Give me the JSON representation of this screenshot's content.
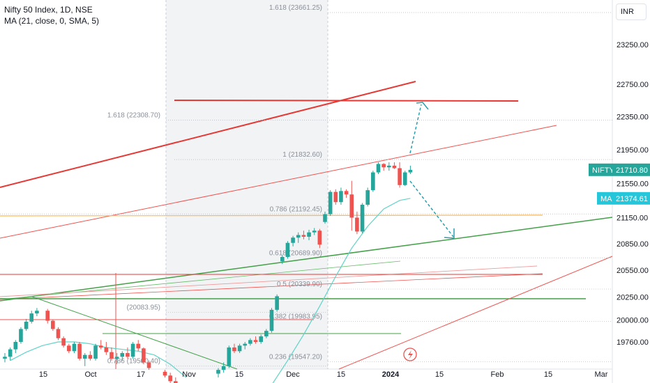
{
  "header": {
    "symbol_line": "Nifty 50 Index, 1D, NSE",
    "indicator_line": "MA (21, close, 0, SMA, 5)"
  },
  "currency": "INR",
  "colors": {
    "up": "#26a69a",
    "down": "#ef5350",
    "ma": "#5fd3c8",
    "price_badge": "#26a69a",
    "ma_badge": "#26c6da",
    "fib_line": "#b2b5be",
    "orange_line": "#ffb74d",
    "arrow": "#2a9fae"
  },
  "price_badge": {
    "symbol": "NIFTY",
    "value": "21710.80"
  },
  "ma_badge": {
    "symbol": "MA",
    "value": "21374.61"
  },
  "chart_data": {
    "type": "candlestick",
    "y_axis": {
      "ticks": [
        "23250.00",
        "22750.00",
        "22350.00",
        "21950.00",
        "21550.00",
        "21150.00",
        "20850.00",
        "20550.00",
        "20250.00",
        "20000.00",
        "19760.00"
      ],
      "tick_values": [
        23250,
        22750,
        22350,
        21950,
        21550,
        21150,
        20850,
        20550,
        20250,
        20000,
        19760
      ],
      "log_scale": true
    },
    "x_axis": {
      "ticks": [
        "15",
        "Oct",
        "17",
        "Nov",
        "15",
        "Dec",
        "15",
        "2024",
        "15",
        "Feb",
        "15",
        "Mar"
      ],
      "bold": [
        "2024"
      ]
    },
    "fib_levels": [
      {
        "label": "1.618 (23661.25)",
        "value": 23661.25
      },
      {
        "label": "1.618 (22308.70)",
        "value": 22308.7
      },
      {
        "label": "1 (21832.60)",
        "value": 21832.6
      },
      {
        "label": "0.786 (21192.45)",
        "value": 21192.45
      },
      {
        "label": "0.618 (20689.90)",
        "value": 20689.9
      },
      {
        "label": "0.5 (20339.90)",
        "value": 20339.9
      },
      {
        "label": "0.382 (19983.95)",
        "value": 19983.95
      },
      {
        "label": "0.236 (19547.20)",
        "value": 19547.2
      },
      {
        "label": "0.786 (19500.40)",
        "value": 19500.4
      },
      {
        "label": "(20083.95)",
        "value": 20083.95
      }
    ],
    "candles": [
      {
        "d": 0,
        "o": 19580,
        "h": 19640,
        "l": 19540,
        "c": 19600
      },
      {
        "d": 1,
        "o": 19600,
        "h": 19700,
        "l": 19560,
        "c": 19680
      },
      {
        "d": 2,
        "o": 19680,
        "h": 19780,
        "l": 19640,
        "c": 19760
      },
      {
        "d": 3,
        "o": 19760,
        "h": 19920,
        "l": 19740,
        "c": 19900
      },
      {
        "d": 4,
        "o": 19900,
        "h": 20010,
        "l": 19880,
        "c": 19980
      },
      {
        "d": 5,
        "o": 19980,
        "h": 20100,
        "l": 19960,
        "c": 20070
      },
      {
        "d": 6,
        "o": 20070,
        "h": 20130,
        "l": 20040,
        "c": 20100
      },
      {
        "d": 8,
        "o": 20100,
        "h": 20120,
        "l": 19960,
        "c": 19990
      },
      {
        "d": 9,
        "o": 19990,
        "h": 20000,
        "l": 19880,
        "c": 19900
      },
      {
        "d": 10,
        "o": 19900,
        "h": 19920,
        "l": 19780,
        "c": 19800
      },
      {
        "d": 11,
        "o": 19800,
        "h": 19820,
        "l": 19700,
        "c": 19720
      },
      {
        "d": 12,
        "o": 19720,
        "h": 19740,
        "l": 19640,
        "c": 19660
      },
      {
        "d": 13,
        "o": 19660,
        "h": 19760,
        "l": 19640,
        "c": 19740
      },
      {
        "d": 14,
        "o": 19740,
        "h": 19760,
        "l": 19560,
        "c": 19580
      },
      {
        "d": 15,
        "o": 19580,
        "h": 19640,
        "l": 19500,
        "c": 19620
      },
      {
        "d": 16,
        "o": 19620,
        "h": 19660,
        "l": 19560,
        "c": 19580
      },
      {
        "d": 17,
        "o": 19580,
        "h": 19740,
        "l": 19560,
        "c": 19720
      },
      {
        "d": 18,
        "o": 19720,
        "h": 19780,
        "l": 19680,
        "c": 19700
      },
      {
        "d": 19,
        "o": 19700,
        "h": 19760,
        "l": 19620,
        "c": 19650
      },
      {
        "d": 20,
        "o": 19650,
        "h": 19700,
        "l": 19560,
        "c": 19580
      },
      {
        "d": 21,
        "o": 19580,
        "h": 19640,
        "l": 19520,
        "c": 19600
      },
      {
        "d": 22,
        "o": 19600,
        "h": 19660,
        "l": 19560,
        "c": 19640
      },
      {
        "d": 23,
        "o": 19640,
        "h": 19700,
        "l": 19580,
        "c": 19600
      },
      {
        "d": 24,
        "o": 19600,
        "h": 19760,
        "l": 19580,
        "c": 19740
      },
      {
        "d": 25,
        "o": 19740,
        "h": 19780,
        "l": 19660,
        "c": 19690
      },
      {
        "d": 26,
        "o": 19690,
        "h": 19700,
        "l": 19520,
        "c": 19540
      },
      {
        "d": 27,
        "o": 19540,
        "h": 19560,
        "l": 19460,
        "c": 19480
      },
      {
        "d": 30,
        "o": 19440,
        "h": 19460,
        "l": 19380,
        "c": 19400
      },
      {
        "d": 31,
        "o": 19400,
        "h": 19430,
        "l": 19320,
        "c": 19340
      },
      {
        "d": 32,
        "o": 19340,
        "h": 19380,
        "l": 19260,
        "c": 19280
      },
      {
        "d": 33,
        "o": 19280,
        "h": 19300,
        "l": 19180,
        "c": 19200
      },
      {
        "d": 34,
        "o": 19200,
        "h": 19230,
        "l": 19120,
        "c": 19140
      },
      {
        "d": 40,
        "o": 19420,
        "h": 19480,
        "l": 19380,
        "c": 19460
      },
      {
        "d": 41,
        "o": 19460,
        "h": 19540,
        "l": 19430,
        "c": 19500
      },
      {
        "d": 42,
        "o": 19500,
        "h": 19720,
        "l": 19480,
        "c": 19700
      },
      {
        "d": 43,
        "o": 19700,
        "h": 19740,
        "l": 19640,
        "c": 19660
      },
      {
        "d": 44,
        "o": 19660,
        "h": 19740,
        "l": 19640,
        "c": 19720
      },
      {
        "d": 45,
        "o": 19720,
        "h": 19760,
        "l": 19680,
        "c": 19740
      },
      {
        "d": 46,
        "o": 19740,
        "h": 19800,
        "l": 19720,
        "c": 19780
      },
      {
        "d": 47,
        "o": 19780,
        "h": 19820,
        "l": 19740,
        "c": 19760
      },
      {
        "d": 48,
        "o": 19760,
        "h": 19840,
        "l": 19740,
        "c": 19820
      },
      {
        "d": 49,
        "o": 19820,
        "h": 19900,
        "l": 19800,
        "c": 19880
      },
      {
        "d": 50,
        "o": 19880,
        "h": 20130,
        "l": 19860,
        "c": 20110
      },
      {
        "d": 51,
        "o": 20110,
        "h": 20280,
        "l": 20090,
        "c": 20260
      },
      {
        "d": 52,
        "o": 20650,
        "h": 20720,
        "l": 20620,
        "c": 20700
      },
      {
        "d": 53,
        "o": 20700,
        "h": 20880,
        "l": 20680,
        "c": 20860
      },
      {
        "d": 54,
        "o": 20860,
        "h": 20940,
        "l": 20820,
        "c": 20920
      },
      {
        "d": 55,
        "o": 20920,
        "h": 20980,
        "l": 20860,
        "c": 20950
      },
      {
        "d": 56,
        "o": 20950,
        "h": 21000,
        "l": 20900,
        "c": 20930
      },
      {
        "d": 57,
        "o": 20930,
        "h": 21010,
        "l": 20890,
        "c": 20980
      },
      {
        "d": 58,
        "o": 20980,
        "h": 21030,
        "l": 20950,
        "c": 21000
      },
      {
        "d": 59,
        "o": 21000,
        "h": 21020,
        "l": 20800,
        "c": 20840
      },
      {
        "d": 60,
        "o": 21100,
        "h": 21220,
        "l": 21080,
        "c": 21190
      },
      {
        "d": 61,
        "o": 21190,
        "h": 21470,
        "l": 21170,
        "c": 21450
      },
      {
        "d": 62,
        "o": 21450,
        "h": 21480,
        "l": 21300,
        "c": 21330
      },
      {
        "d": 63,
        "o": 21330,
        "h": 21500,
        "l": 21300,
        "c": 21460
      },
      {
        "d": 64,
        "o": 21460,
        "h": 21480,
        "l": 21380,
        "c": 21420
      },
      {
        "d": 65,
        "o": 21420,
        "h": 21580,
        "l": 21000,
        "c": 21150
      },
      {
        "d": 66,
        "o": 21150,
        "h": 21220,
        "l": 20960,
        "c": 20990
      },
      {
        "d": 67,
        "o": 20990,
        "h": 21320,
        "l": 20970,
        "c": 21300
      },
      {
        "d": 68,
        "o": 21300,
        "h": 21500,
        "l": 21280,
        "c": 21470
      },
      {
        "d": 69,
        "o": 21470,
        "h": 21700,
        "l": 21450,
        "c": 21680
      },
      {
        "d": 70,
        "o": 21680,
        "h": 21800,
        "l": 21660,
        "c": 21780
      },
      {
        "d": 71,
        "o": 21780,
        "h": 21790,
        "l": 21700,
        "c": 21740
      },
      {
        "d": 72,
        "o": 21740,
        "h": 21800,
        "l": 21700,
        "c": 21760
      },
      {
        "d": 73,
        "o": 21760,
        "h": 21800,
        "l": 21720,
        "c": 21730
      },
      {
        "d": 74,
        "o": 21730,
        "h": 21800,
        "l": 21500,
        "c": 21530
      },
      {
        "d": 75,
        "o": 21530,
        "h": 21700,
        "l": 21520,
        "c": 21680
      },
      {
        "d": 76,
        "o": 21680,
        "h": 21760,
        "l": 21660,
        "c": 21710
      }
    ],
    "ma_series": [
      {
        "d": 1,
        "v": 19560
      },
      {
        "d": 4,
        "v": 19650
      },
      {
        "d": 7,
        "v": 19720
      },
      {
        "d": 10,
        "v": 19760
      },
      {
        "d": 13,
        "v": 19760
      },
      {
        "d": 16,
        "v": 19740
      },
      {
        "d": 19,
        "v": 19700
      },
      {
        "d": 22,
        "v": 19680
      },
      {
        "d": 25,
        "v": 19660
      },
      {
        "d": 28,
        "v": 19620
      },
      {
        "d": 31,
        "v": 19520
      },
      {
        "d": 34,
        "v": 19380
      },
      {
        "d": 50,
        "v": 19300
      },
      {
        "d": 53,
        "v": 19560
      },
      {
        "d": 56,
        "v": 19840
      },
      {
        "d": 59,
        "v": 20150
      },
      {
        "d": 62,
        "v": 20480
      },
      {
        "d": 65,
        "v": 20800
      },
      {
        "d": 68,
        "v": 21050
      },
      {
        "d": 71,
        "v": 21250
      },
      {
        "d": 74,
        "v": 21350
      },
      {
        "d": 76,
        "v": 21374.61
      }
    ]
  }
}
